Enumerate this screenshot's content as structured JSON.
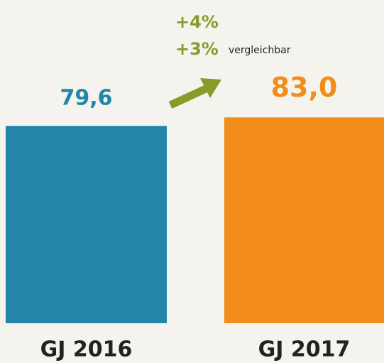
{
  "chart_data": {
    "type": "bar",
    "categories": [
      "GJ 2016",
      "GJ 2017"
    ],
    "values": [
      79.6,
      83.0
    ],
    "value_labels": [
      "79,6",
      "83,0"
    ],
    "colors": [
      "#2385a8",
      "#f28c1a"
    ],
    "ylim": [
      0,
      100
    ],
    "annotations": [
      "+4%",
      "+3%",
      "vergleichbar"
    ],
    "annotation_color": "#8a9a2a"
  }
}
